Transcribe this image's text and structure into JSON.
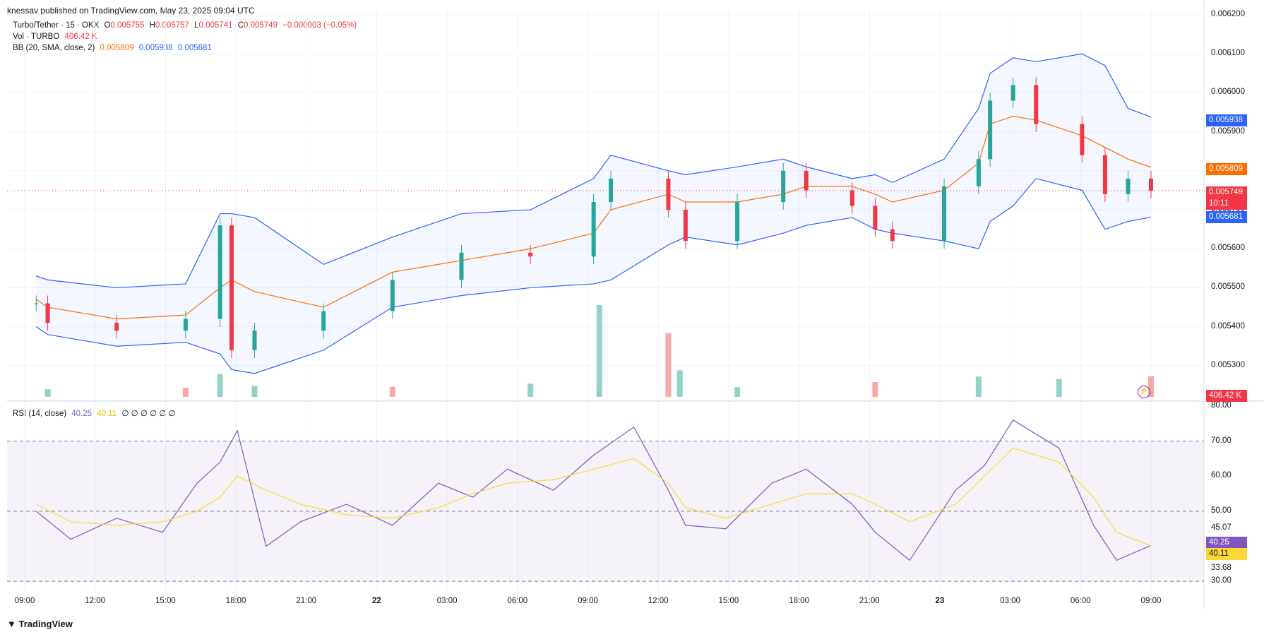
{
  "header": {
    "published": "knessav published on TradingView.com, May 23, 2025 09:04 UTC"
  },
  "legend": {
    "symbol": "Turbo/Tether · 15 · OKX",
    "o_label": "O",
    "o": "0.005755",
    "h_label": "H",
    "h": "0.005757",
    "l_label": "L",
    "l": "0.005741",
    "c_label": "C",
    "c": "0.005749",
    "change": "−0.000003 (−0.05%)",
    "vol_label": "Vol · TURBO",
    "vol": "406.42 K",
    "bb_label": "BB (20, SMA, close, 2)",
    "bb_basis": "0.005809",
    "bb_upper": "0.005938",
    "bb_lower": "0.005681",
    "rsi_label": "RSI (14, close)",
    "rsi": "40.25",
    "rsi_ma": "40.11",
    "rsi_extra": "∅ ∅ ∅ ∅ ∅ ∅"
  },
  "price_axis": [
    "0.006200",
    "0.006100",
    "0.006000",
    "0.005900",
    "0.005800",
    "0.005700",
    "0.005600",
    "0.005500",
    "0.005400",
    "0.005300"
  ],
  "badges": {
    "upper": "0.005938",
    "basis": "0.005809",
    "close": "0.005749",
    "countdown": "10:11",
    "lower": "0.005681",
    "volume": "406.42 K",
    "rsi": "40.25",
    "rsi_ma": "40.11"
  },
  "rsi_axis": [
    "80.00",
    "70.00",
    "60.00",
    "50.00",
    "45.07",
    "33.68",
    "30.00"
  ],
  "time_axis": [
    "09:00",
    "12:00",
    "15:00",
    "18:00",
    "21:00",
    "22",
    "03:00",
    "06:00",
    "09:00",
    "12:00",
    "15:00",
    "18:00",
    "21:00",
    "23",
    "03:00",
    "06:00",
    "09:00"
  ],
  "footer": {
    "brand": "TradingView"
  },
  "colors": {
    "up": "#26a69a",
    "down": "#f23645",
    "band": "#2962ff",
    "basis": "#ff6d00",
    "rsi": "#7e57c2",
    "rsi_ma": "#fdd835"
  },
  "chart_data": [
    {
      "type": "line",
      "title": "Turbo/Tether · 15 · OKX",
      "xlabel": "",
      "ylabel": "",
      "ylim": [
        0.00522,
        0.00622
      ],
      "x": [
        "21 08:30",
        "21 09:00",
        "21 12:00",
        "21 15:00",
        "21 16:30",
        "21 17:00",
        "21 18:00",
        "21 21:00",
        "22 00:00",
        "22 03:00",
        "22 06:00",
        "22 08:45",
        "22 09:30",
        "22 12:00",
        "22 12:45",
        "22 15:00",
        "22 17:00",
        "22 18:00",
        "22 20:00",
        "22 21:00",
        "22 21:45",
        "23 00:00",
        "23 01:30",
        "23 02:00",
        "23 03:00",
        "23 04:00",
        "23 06:00",
        "23 07:00",
        "23 08:00",
        "23 09:00"
      ],
      "series": [
        {
          "name": "close",
          "values": [
            0.00546,
            0.00541,
            0.00539,
            0.00542,
            0.00566,
            0.00534,
            0.00539,
            0.00544,
            0.00552,
            0.00559,
            0.00558,
            0.00572,
            0.00578,
            0.0057,
            0.00562,
            0.00572,
            0.0058,
            0.00575,
            0.00571,
            0.00565,
            0.00562,
            0.00576,
            0.00583,
            0.00598,
            0.00602,
            0.00592,
            0.00584,
            0.00574,
            0.00578,
            0.005749
          ]
        },
        {
          "name": "BB upper",
          "values": [
            0.00553,
            0.00552,
            0.0055,
            0.00551,
            0.00569,
            0.00569,
            0.00568,
            0.00556,
            0.00563,
            0.00569,
            0.0057,
            0.00578,
            0.00584,
            0.0058,
            0.00579,
            0.00581,
            0.00583,
            0.00581,
            0.00578,
            0.00579,
            0.00577,
            0.00583,
            0.00596,
            0.00605,
            0.00609,
            0.00608,
            0.0061,
            0.00607,
            0.00596,
            0.005938
          ]
        },
        {
          "name": "BB basis",
          "values": [
            0.00547,
            0.00545,
            0.00542,
            0.00543,
            0.0055,
            0.00552,
            0.00549,
            0.00545,
            0.00554,
            0.00557,
            0.0056,
            0.00564,
            0.0057,
            0.00574,
            0.00572,
            0.00572,
            0.00574,
            0.00576,
            0.00576,
            0.00574,
            0.00572,
            0.00575,
            0.00582,
            0.00592,
            0.00594,
            0.00593,
            0.00589,
            0.00586,
            0.00583,
            0.005809
          ]
        },
        {
          "name": "BB lower",
          "values": [
            0.0054,
            0.00538,
            0.00535,
            0.00536,
            0.00533,
            0.00529,
            0.00528,
            0.00534,
            0.00545,
            0.00548,
            0.0055,
            0.00551,
            0.00552,
            0.00561,
            0.00563,
            0.00561,
            0.00564,
            0.00566,
            0.00568,
            0.00565,
            0.00564,
            0.00562,
            0.0056,
            0.00567,
            0.00571,
            0.00578,
            0.00575,
            0.00565,
            0.00567,
            0.005681
          ]
        }
      ]
    },
    {
      "type": "bar",
      "title": "Vol · TURBO",
      "categories": [
        "21 09:00",
        "21 15:00",
        "21 16:30",
        "21 18:00",
        "22 00:00",
        "22 06:00",
        "22 09:00",
        "22 12:00",
        "22 12:30",
        "22 15:00",
        "22 21:00",
        "23 01:30",
        "23 05:00",
        "23 09:00"
      ],
      "values": [
        150,
        180,
        450,
        220,
        200,
        260,
        1800,
        1250,
        520,
        190,
        290,
        400,
        350,
        406.42
      ]
    },
    {
      "type": "line",
      "title": "RSI (14, close)",
      "xlabel": "",
      "ylabel": "",
      "ylim": [
        25,
        80
      ],
      "x": [
        "21 08:30",
        "21 10:00",
        "21 12:00",
        "21 14:00",
        "21 15:30",
        "21 16:30",
        "21 17:15",
        "21 18:30",
        "21 20:00",
        "21 22:00",
        "22 00:00",
        "22 02:00",
        "22 03:30",
        "22 05:00",
        "22 07:00",
        "22 08:45",
        "22 10:30",
        "22 12:00",
        "22 12:45",
        "22 14:30",
        "22 16:30",
        "22 18:00",
        "22 20:00",
        "22 21:00",
        "22 22:30",
        "23 00:30",
        "23 01:45",
        "23 03:00",
        "23 05:00",
        "23 06:30",
        "23 07:30",
        "23 09:00"
      ],
      "series": [
        {
          "name": "RSI",
          "values": [
            50,
            42,
            48,
            44,
            58,
            64,
            73,
            40,
            47,
            52,
            46,
            58,
            54,
            62,
            56,
            66,
            74,
            56,
            46,
            45,
            58,
            62,
            52,
            44,
            36,
            56,
            63,
            76,
            68,
            46,
            36,
            40.25
          ]
        },
        {
          "name": "RSI MA",
          "values": [
            52,
            47,
            46,
            47,
            50,
            54,
            60,
            56,
            52,
            49,
            48,
            51,
            55,
            58,
            59,
            62,
            65,
            58,
            51,
            48,
            52,
            55,
            55,
            52,
            47,
            52,
            60,
            68,
            64,
            54,
            44,
            40.11
          ]
        }
      ]
    }
  ]
}
